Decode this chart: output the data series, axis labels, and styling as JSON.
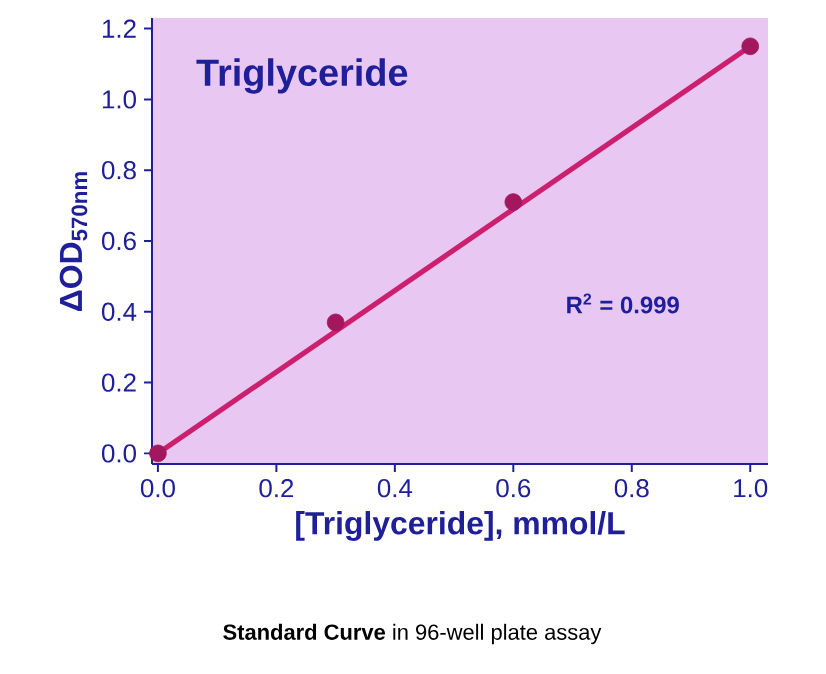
{
  "chart_data": {
    "type": "scatter",
    "title": "Triglyceride",
    "xlabel": "[Triglyceride], mmol/L",
    "ylabel": "ΔOD$_{570nm}$",
    "series": [
      {
        "x": [
          0,
          0.3,
          0.6,
          1.0
        ],
        "values": [
          0,
          0.37,
          0.71,
          1.15
        ],
        "color": "#a3175f",
        "marker": "circle"
      },
      {
        "type": "line",
        "x": [
          0,
          1.0
        ],
        "values": [
          0,
          1.15
        ],
        "color": "#cc1f6e"
      }
    ],
    "xlim": [
      -0.01,
      1.03
    ],
    "ylim": [
      -0.03,
      1.23
    ],
    "xticks": [
      {
        "value": 0,
        "label": "0.0"
      },
      {
        "value": 0.2,
        "label": "0.2"
      },
      {
        "value": 0.4,
        "label": "0.4"
      },
      {
        "value": 0.6,
        "label": "0.6"
      },
      {
        "value": 0.8,
        "label": "0.8"
      },
      {
        "value": 1.0,
        "label": "1.0"
      }
    ],
    "yticks": [
      {
        "value": 0,
        "label": "0.0"
      },
      {
        "value": 0.2,
        "label": "0.2"
      },
      {
        "value": 0.4,
        "label": "0.4"
      },
      {
        "value": 0.6,
        "label": "0.6"
      },
      {
        "value": 0.8,
        "label": "0.8"
      },
      {
        "value": 1.0,
        "label": "1.0"
      },
      {
        "value": 1.2,
        "label": "1.2"
      }
    ],
    "grid": false,
    "annotations": [
      "R$^{2}$ = 0.999",
      "**Standard Curve** in 96-well plate assay"
    ]
  }
}
